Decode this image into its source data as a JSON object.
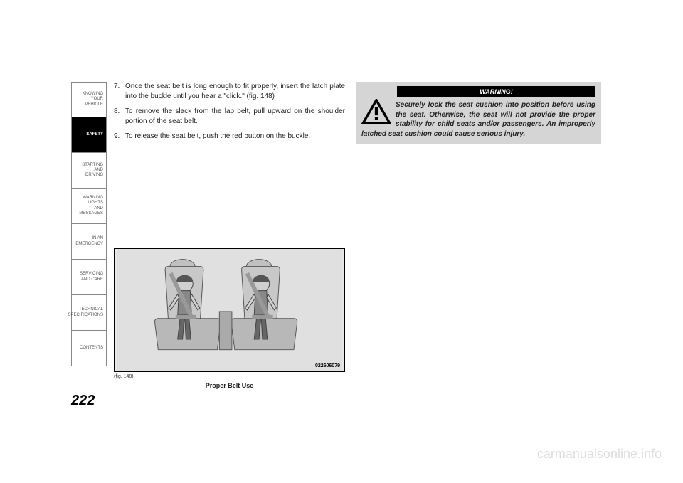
{
  "sidebar": {
    "items": [
      {
        "label": "KNOWING\nYOUR\nVEHICLE",
        "active": false
      },
      {
        "label": "SAFETY",
        "active": true
      },
      {
        "label": "STARTING\nAND\nDRIVING",
        "active": false
      },
      {
        "label": "WARNING\nLIGHTS\nAND\nMESSAGES",
        "active": false
      },
      {
        "label": "IN AN\nEMERGENCY",
        "active": false
      },
      {
        "label": "SERVICING\nAND CARE",
        "active": false
      },
      {
        "label": "TECHNICAL\nSPECIFICATIONS",
        "active": false
      },
      {
        "label": "CONTENTS",
        "active": false
      }
    ]
  },
  "instructions": [
    {
      "num": "7.",
      "text": "Once the seat belt is long enough to fit properly, insert the latch plate into the buckle until you hear a \"click.\" (fig. 148)"
    },
    {
      "num": "8.",
      "text": "To remove the slack from the lap belt, pull upward on the shoulder portion of the seat belt."
    },
    {
      "num": "9.",
      "text": "To release the seat belt, push the red button on the buckle."
    }
  ],
  "warning": {
    "header": "WARNING!",
    "text": "Securely lock the seat cushion into position before using the seat. Otherwise, the seat will not provide the proper stability for child seats and/or passengers. An improperly latched seat cushion could cause serious injury."
  },
  "figure": {
    "id": "022606079",
    "label": "(fig. 148)",
    "caption": "Proper Belt Use"
  },
  "page_number": "222",
  "watermark": "carmanualsonline.info",
  "styling": {
    "page_bg": "#ffffff",
    "sidebar_border": "#888888",
    "sidebar_text": "#555555",
    "sidebar_active_bg": "#000000",
    "sidebar_active_text": "#ffffff",
    "body_text": "#222222",
    "warning_bg": "#d5d5d5",
    "warning_header_bg": "#000000",
    "figure_border": "#000000",
    "figure_bg": "#e8e8e8",
    "watermark_color": "#dddddd",
    "body_fontsize": 10,
    "sidebar_fontsize": 6,
    "pagenumber_fontsize": 20
  }
}
